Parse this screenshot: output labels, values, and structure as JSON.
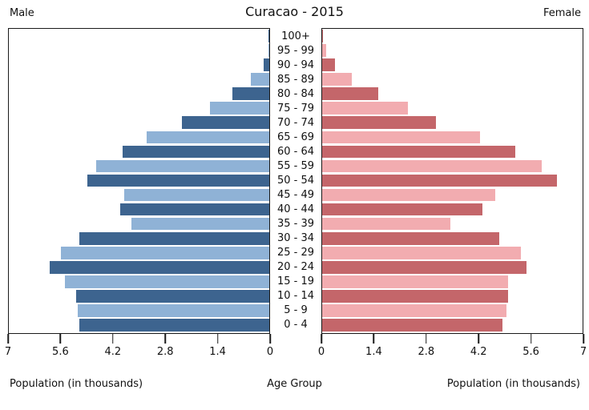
{
  "header": {
    "male_label": "Male",
    "female_label": "Female",
    "title": "Curacao - 2015"
  },
  "footer": {
    "left_caption": "Population (in thousands)",
    "center_caption": "Age Group",
    "right_caption": "Population (in thousands)"
  },
  "chart_data": {
    "type": "bar",
    "subtype": "population-pyramid",
    "title": "Curacao - 2015",
    "center_axis_label": "Age Group",
    "xlabel": "Population (in thousands)",
    "xlim": [
      0,
      7
    ],
    "grid": false,
    "tick_values": [
      0,
      1.4,
      2.8,
      4.2,
      5.6,
      7
    ],
    "tick_labels": [
      "0",
      "1.4",
      "2.8",
      "4.2",
      "5.6",
      "7"
    ],
    "categories": [
      "100+",
      "95 - 99",
      "90 - 94",
      "85 - 89",
      "80 - 84",
      "75 - 79",
      "70 - 74",
      "65 - 69",
      "60 - 64",
      "55 - 59",
      "50 - 54",
      "45 - 49",
      "40 - 44",
      "35 - 39",
      "30 - 34",
      "25 - 29",
      "20 - 24",
      "15 - 19",
      "10 - 14",
      "5 - 9",
      "0 - 4"
    ],
    "series": [
      {
        "name": "Male",
        "side": "left",
        "values": [
          0.02,
          0.03,
          0.15,
          0.5,
          1.0,
          1.6,
          2.35,
          3.3,
          3.95,
          4.65,
          4.9,
          3.9,
          4.0,
          3.7,
          5.1,
          5.6,
          5.9,
          5.5,
          5.2,
          5.15,
          5.1
        ]
      },
      {
        "name": "Female",
        "side": "right",
        "values": [
          0.03,
          0.1,
          0.35,
          0.8,
          1.5,
          2.3,
          3.05,
          4.25,
          5.2,
          5.9,
          6.3,
          4.65,
          4.3,
          3.45,
          4.75,
          5.35,
          5.5,
          5.0,
          5.0,
          4.95,
          4.85
        ]
      }
    ],
    "colors": {
      "male_dark": "#3d648f",
      "male_light": "#8fb2d6",
      "female_dark": "#c4666a",
      "female_light": "#f2acb0",
      "axis": "#1a1a1a"
    }
  }
}
